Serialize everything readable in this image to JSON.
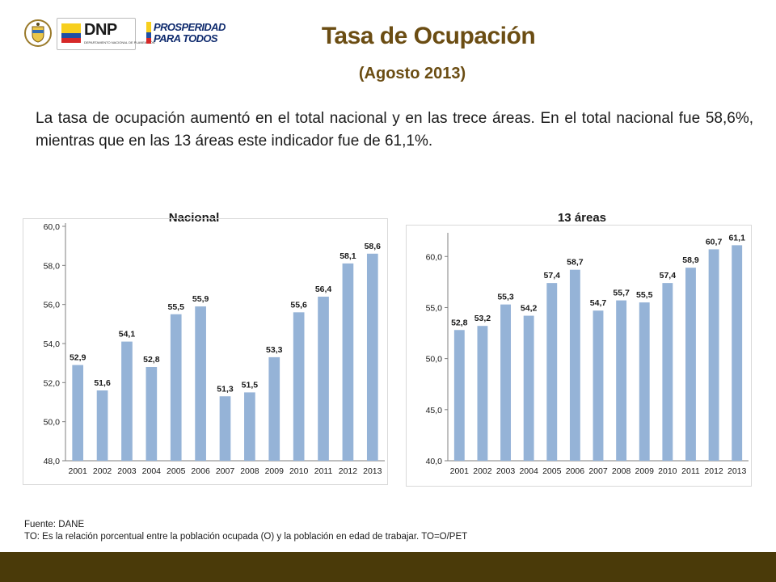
{
  "header": {
    "title": "Tasa de Ocupación",
    "subtitle": "(Agosto 2013)",
    "logo_dnp": "DNP",
    "logo_dnp_sub": "DEPARTAMENTO NACIONAL DE PLANEACIÓN",
    "logo_prosperidad_line1": "PROSPERIDAD",
    "logo_prosperidad_line2": "PARA TODOS"
  },
  "intro_text": "La tasa de ocupación aumentó en el total nacional y en las trece áreas. En el total nacional fue 58,6%, mientras que en las 13 áreas este indicador fue de 61,1%.",
  "colors": {
    "bar": "#95b3d7",
    "title": "#6b4d13",
    "footer": "#4a3a09"
  },
  "chart_data": [
    {
      "type": "bar",
      "title": "Nacional",
      "categories": [
        "2001",
        "2002",
        "2003",
        "2004",
        "2005",
        "2006",
        "2007",
        "2008",
        "2009",
        "2010",
        "2011",
        "2012",
        "2013"
      ],
      "values": [
        52.9,
        51.6,
        54.1,
        52.8,
        55.5,
        55.9,
        51.3,
        51.5,
        53.3,
        55.6,
        56.4,
        58.1,
        58.6
      ],
      "value_labels": [
        "52,9",
        "51,6",
        "54,1",
        "52,8",
        "55,5",
        "55,9",
        "51,3",
        "51,5",
        "53,3",
        "55,6",
        "56,4",
        "58,1",
        "58,6"
      ],
      "ylim": [
        48,
        60
      ],
      "yticks": [
        48,
        50,
        52,
        54,
        56,
        58,
        60
      ],
      "ytick_labels": [
        "48,0",
        "50,0",
        "52,0",
        "54,0",
        "56,0",
        "58,0",
        "60,0"
      ],
      "grid": false
    },
    {
      "type": "bar",
      "title": "13 áreas",
      "categories": [
        "2001",
        "2002",
        "2003",
        "2004",
        "2005",
        "2006",
        "2007",
        "2008",
        "2009",
        "2010",
        "2011",
        "2012",
        "2013"
      ],
      "values": [
        52.8,
        53.2,
        55.3,
        54.2,
        57.4,
        58.7,
        54.7,
        55.7,
        55.5,
        57.4,
        58.9,
        60.7,
        61.1
      ],
      "value_labels": [
        "52,8",
        "53,2",
        "55,3",
        "54,2",
        "57,4",
        "58,7",
        "54,7",
        "55,7",
        "55,5",
        "57,4",
        "58,9",
        "60,7",
        "61,1"
      ],
      "ylim": [
        40,
        62
      ],
      "yticks": [
        40,
        45,
        50,
        55,
        60
      ],
      "ytick_labels": [
        "40,0",
        "45,0",
        "50,0",
        "55,0",
        "60,0"
      ],
      "grid": false
    }
  ],
  "footnotes": {
    "source": "Fuente: DANE",
    "definition": "TO: Es la relación porcentual entre la población ocupada (O) y la población  en edad de trabajar. TO=O/PET"
  }
}
